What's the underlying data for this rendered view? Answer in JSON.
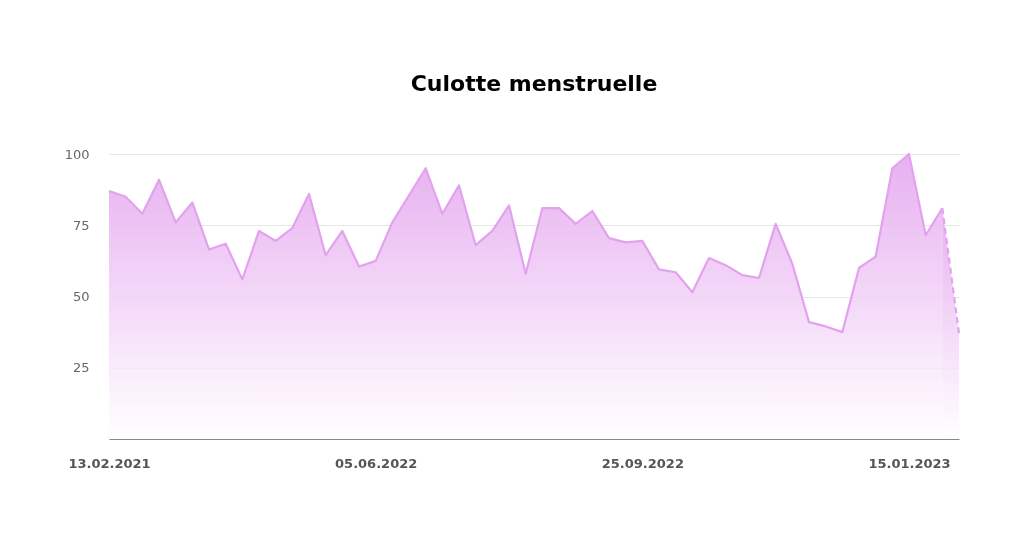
{
  "chart_data": {
    "type": "area",
    "title": "Culotte menstruelle",
    "categories": [
      "13.02.2021",
      null,
      null,
      null,
      null,
      null,
      null,
      null,
      null,
      null,
      null,
      null,
      null,
      null,
      null,
      null,
      "05.06.2022",
      null,
      null,
      null,
      null,
      null,
      null,
      null,
      null,
      null,
      null,
      null,
      null,
      null,
      null,
      null,
      "25.09.2022",
      null,
      null,
      null,
      null,
      null,
      null,
      null,
      null,
      null,
      null,
      null,
      null,
      null,
      null,
      null,
      "15.01.2023",
      null,
      null,
      null
    ],
    "series": [
      {
        "color": "#e3a2ee",
        "line_style": "solid",
        "values": [
          87,
          85,
          79,
          91,
          76,
          83,
          66.5,
          68.5,
          56,
          73,
          69.5,
          74,
          86,
          64.5,
          73,
          60.5,
          62.5,
          76,
          85.5,
          95,
          79,
          89,
          68,
          73,
          82,
          58,
          81,
          81,
          75.5,
          80,
          70.5,
          69,
          69.5,
          59.5,
          58.5,
          51.5,
          63.5,
          61,
          57.5,
          56.5,
          75.5,
          61.5,
          41,
          39.5,
          37.5,
          60,
          64,
          95,
          100,
          71.5,
          81,
          null
        ]
      },
      {
        "color": "#e3a2ee",
        "line_style": "dashed",
        "values": [
          null,
          null,
          null,
          null,
          null,
          null,
          null,
          null,
          null,
          null,
          null,
          null,
          null,
          null,
          null,
          null,
          null,
          null,
          null,
          null,
          null,
          null,
          null,
          null,
          null,
          null,
          null,
          null,
          null,
          null,
          null,
          null,
          null,
          null,
          null,
          null,
          null,
          null,
          null,
          null,
          null,
          null,
          null,
          null,
          null,
          null,
          null,
          null,
          null,
          null,
          81,
          37
        ]
      }
    ],
    "ylim": [
      0,
      100
    ],
    "yticks": [
      25,
      50,
      75,
      100
    ],
    "grid": "y",
    "marker": "none"
  }
}
